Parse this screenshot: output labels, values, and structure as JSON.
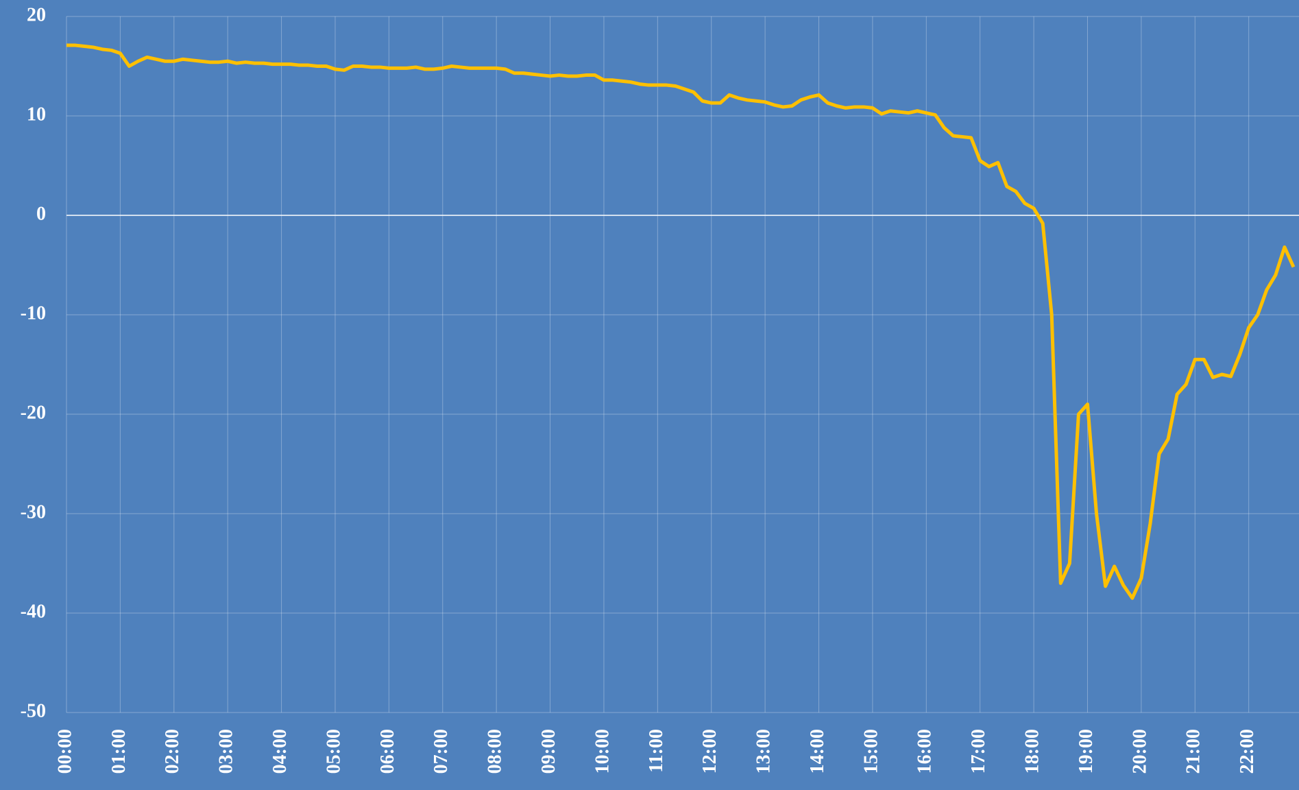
{
  "chart_data": {
    "type": "line",
    "categories": [
      "00:00",
      null,
      null,
      null,
      null,
      null,
      "01:00",
      null,
      null,
      null,
      null,
      null,
      "02:00",
      null,
      null,
      null,
      null,
      null,
      "03:00",
      null,
      null,
      null,
      null,
      null,
      "04:00",
      null,
      null,
      null,
      null,
      null,
      "05:00",
      null,
      null,
      null,
      null,
      null,
      "06:00",
      null,
      null,
      null,
      null,
      null,
      "07:00",
      null,
      null,
      null,
      null,
      null,
      "08:00",
      null,
      null,
      null,
      null,
      null,
      "09:00",
      null,
      null,
      null,
      null,
      null,
      "10:00",
      null,
      null,
      null,
      null,
      null,
      "11:00",
      null,
      null,
      null,
      null,
      null,
      "12:00",
      null,
      null,
      null,
      null,
      null,
      "13:00",
      null,
      null,
      null,
      null,
      null,
      "14:00",
      null,
      null,
      null,
      null,
      null,
      "15:00",
      null,
      null,
      null,
      null,
      null,
      "16:00",
      null,
      null,
      null,
      null,
      null,
      "17:00",
      null,
      null,
      null,
      null,
      null,
      "18:00",
      null,
      null,
      null,
      null,
      null,
      "19:00",
      null,
      null,
      null,
      null,
      null,
      "20:00",
      null,
      null,
      null,
      null,
      null,
      "21:00",
      null,
      null,
      null,
      null,
      null,
      "22:00",
      null,
      null,
      null,
      null,
      null
    ],
    "series": [
      {
        "color": "#ffc000",
        "values": [
          17.1,
          17.1,
          17.0,
          16.9,
          16.7,
          16.6,
          16.3,
          15.0,
          15.5,
          15.9,
          15.7,
          15.5,
          15.5,
          15.7,
          15.6,
          15.5,
          15.4,
          15.4,
          15.5,
          15.3,
          15.4,
          15.3,
          15.3,
          15.2,
          15.2,
          15.2,
          15.1,
          15.1,
          15.0,
          15.0,
          14.7,
          14.6,
          15.0,
          15.0,
          14.9,
          14.9,
          14.8,
          14.8,
          14.8,
          14.9,
          14.7,
          14.7,
          14.8,
          15.0,
          14.9,
          14.8,
          14.8,
          14.8,
          14.8,
          14.7,
          14.3,
          14.3,
          14.2,
          14.1,
          14.0,
          14.1,
          14.0,
          14.0,
          14.1,
          14.1,
          13.6,
          13.6,
          13.5,
          13.4,
          13.2,
          13.1,
          13.1,
          13.1,
          13.0,
          12.7,
          12.4,
          11.5,
          11.3,
          11.3,
          12.1,
          11.8,
          11.6,
          11.5,
          11.4,
          11.1,
          10.9,
          11.0,
          11.6,
          11.9,
          12.1,
          11.3,
          11.0,
          10.8,
          10.9,
          10.9,
          10.8,
          10.2,
          10.5,
          10.4,
          10.3,
          10.5,
          10.3,
          10.1,
          8.8,
          8.0,
          7.9,
          7.8,
          5.5,
          4.9,
          5.3,
          2.9,
          2.4,
          1.2,
          0.7,
          -0.8,
          -10,
          -37,
          -35,
          -20,
          -19,
          -30,
          -37.3,
          -35.3,
          -37.2,
          -38.5,
          -36.5,
          -31,
          -24,
          -22.5,
          -18,
          -17,
          -14.5,
          -14.5,
          -16.3,
          -16,
          -16.2,
          -14,
          -11.3,
          -10,
          -7.5,
          -6,
          -3.2,
          -5.2
        ]
      }
    ],
    "ylim": [
      -50,
      20
    ],
    "yticks": [
      -50,
      -40,
      -30,
      -20,
      -10,
      0,
      10,
      20
    ],
    "grid": true,
    "background": "#4f81bd"
  }
}
